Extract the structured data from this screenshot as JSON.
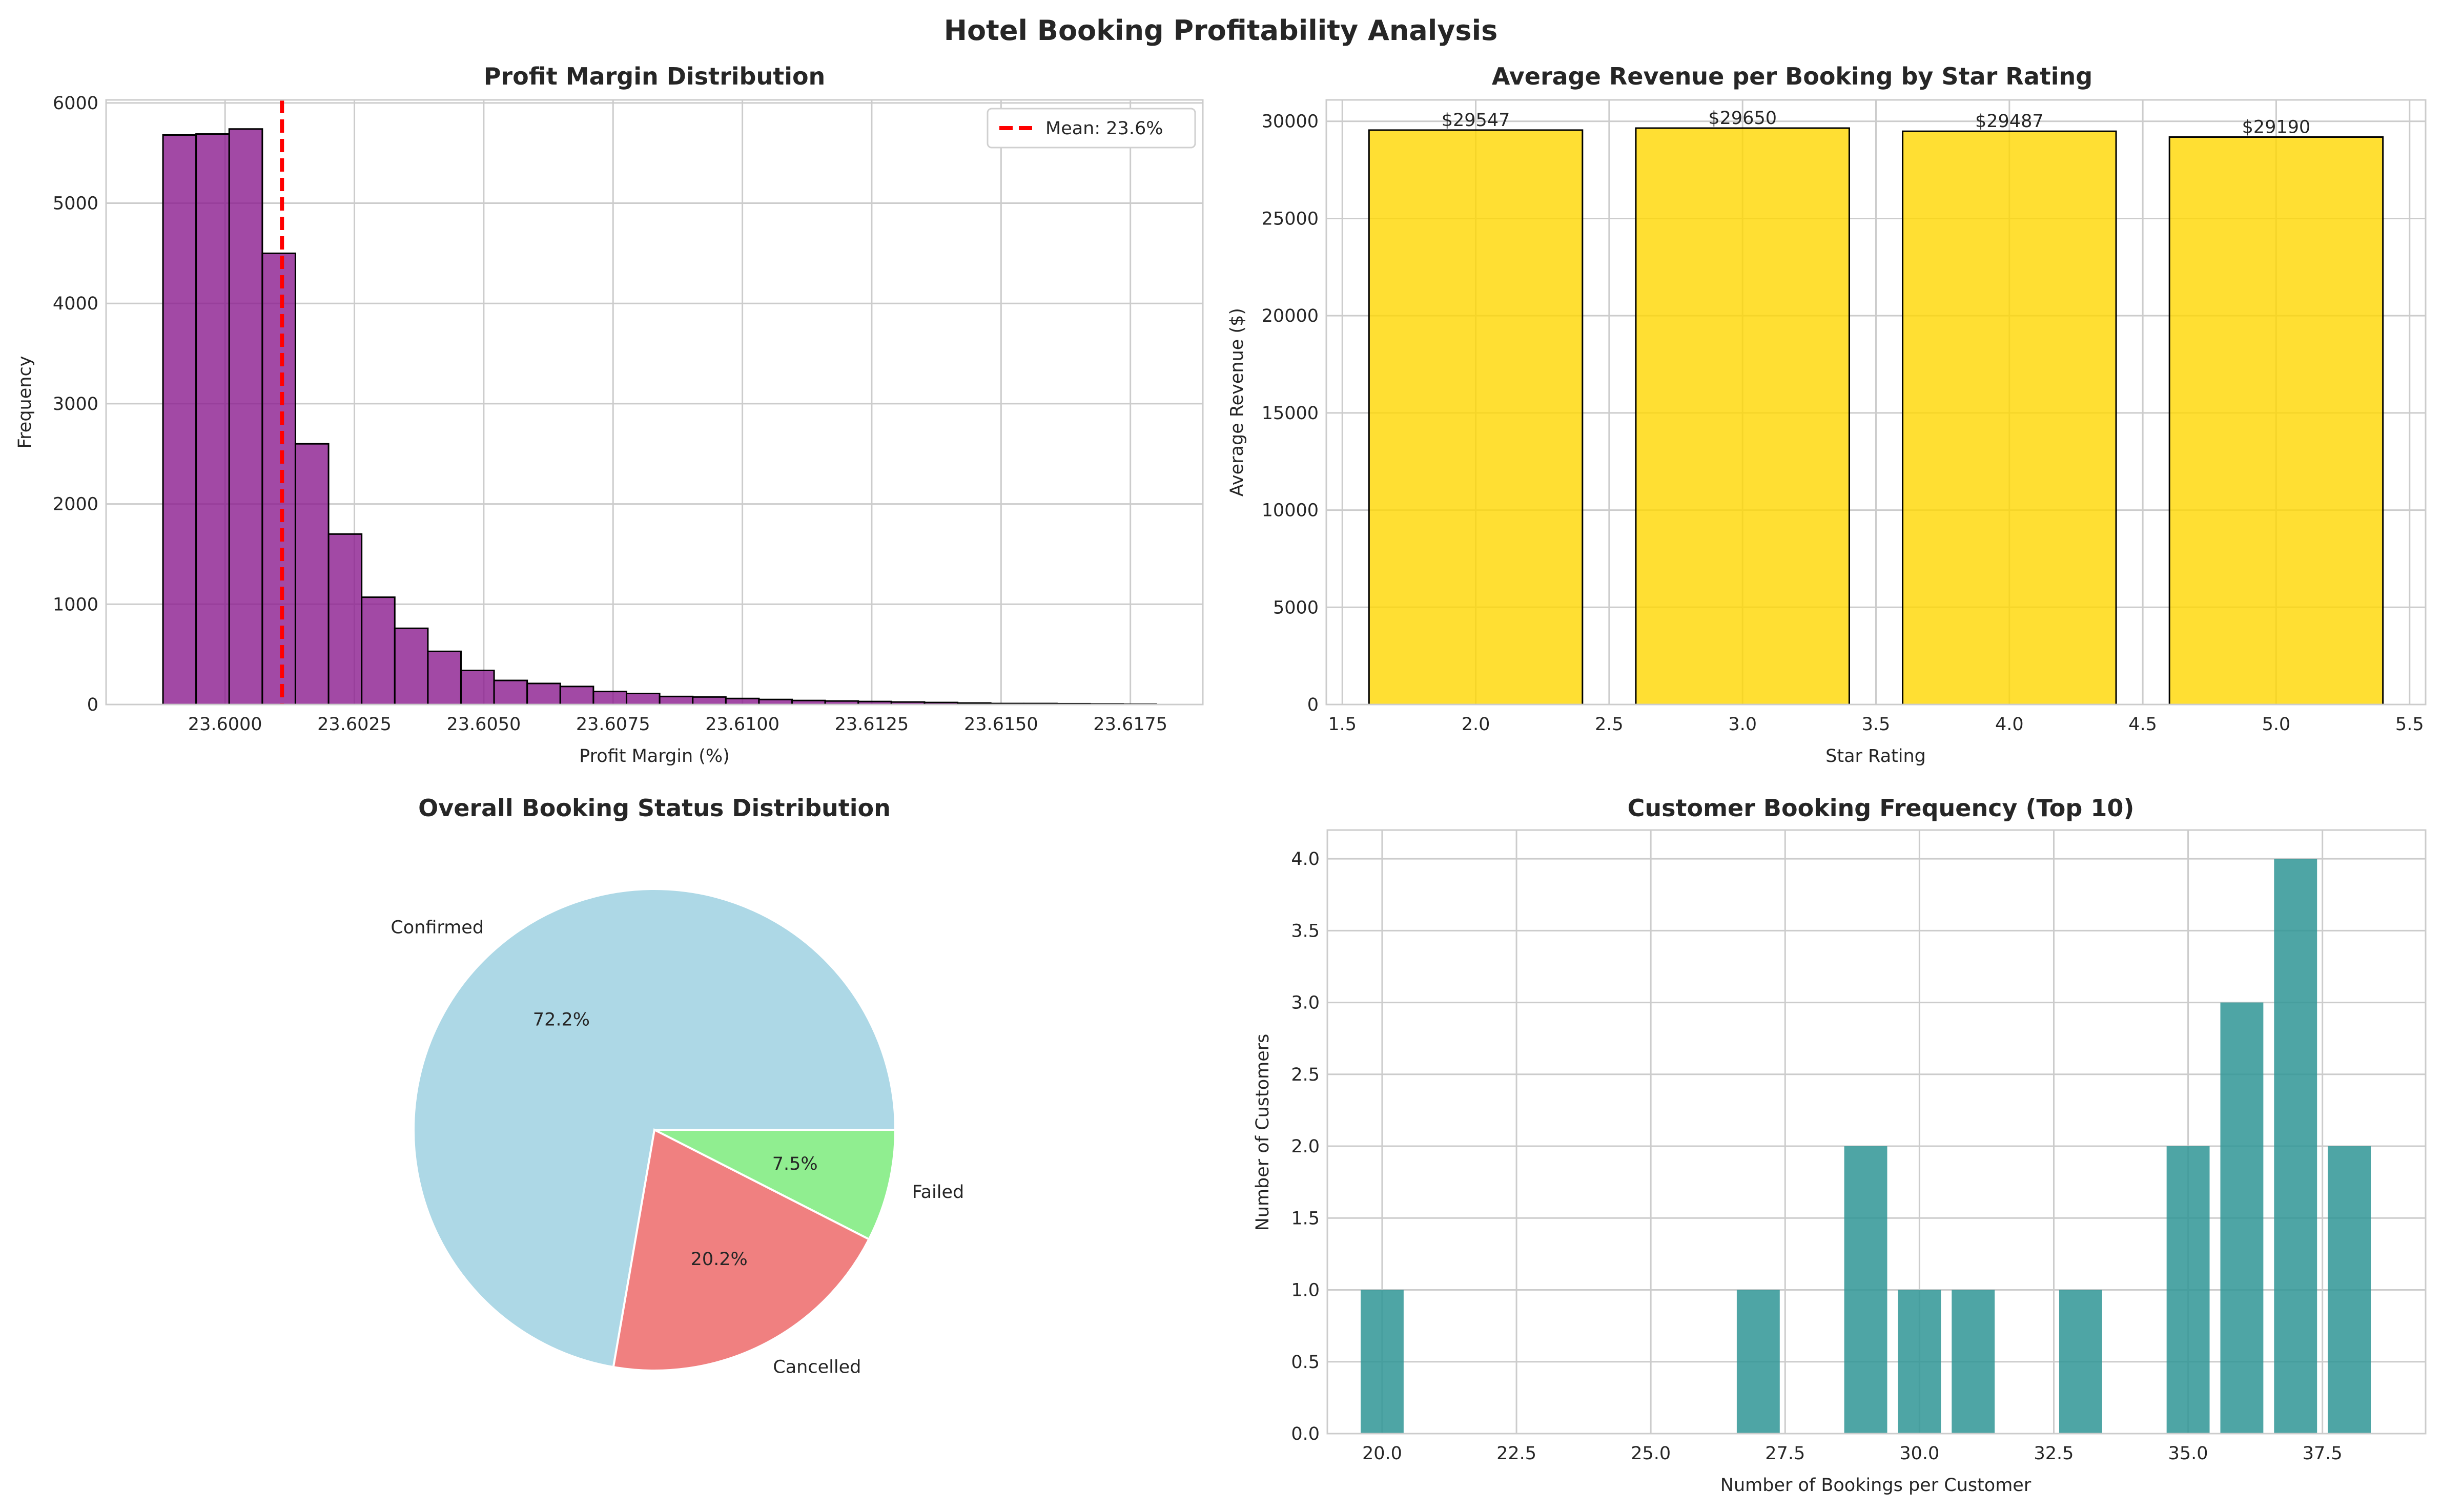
{
  "figure_title": "Hotel Booking Profitability Analysis",
  "chart_data": [
    {
      "type": "bar",
      "subtype": "histogram",
      "title": "Profit Margin Distribution",
      "xlabel": "Profit Margin (%)",
      "ylabel": "Frequency",
      "bin_start": 23.5988,
      "bin_width": 0.00064,
      "values": [
        5680,
        5690,
        5740,
        4500,
        2600,
        1700,
        1070,
        760,
        530,
        340,
        240,
        210,
        180,
        130,
        110,
        80,
        75,
        60,
        50,
        40,
        35,
        30,
        25,
        20,
        15,
        10,
        10,
        8,
        6,
        4
      ],
      "xlim": [
        23.5977,
        23.6189
      ],
      "ylim": [
        0,
        6030
      ],
      "xticks": [
        "23.6000",
        "23.6025",
        "23.6050",
        "23.6075",
        "23.6100",
        "23.6125",
        "23.6150",
        "23.6175"
      ],
      "xtick_values": [
        23.6,
        23.6025,
        23.605,
        23.6075,
        23.61,
        23.6125,
        23.615,
        23.6175
      ],
      "yticks": [
        0,
        1000,
        2000,
        3000,
        4000,
        5000,
        6000
      ],
      "mean_line": {
        "value": 23.6011,
        "label": "Mean: 23.6%",
        "color": "#ff0000"
      },
      "bar_color": "#8b1c8e",
      "legend_position": "top-right",
      "grid": true
    },
    {
      "type": "bar",
      "title": "Average Revenue per Booking by Star Rating",
      "xlabel": "Star Rating",
      "ylabel": "Average Revenue ($)",
      "x": [
        2,
        3,
        4,
        5
      ],
      "values": [
        29547,
        29650,
        29487,
        29190
      ],
      "data_labels": [
        "$29547",
        "$29650",
        "$29487",
        "$29190"
      ],
      "bar_width": 0.8,
      "xlim": [
        1.44,
        5.56
      ],
      "ylim": [
        0,
        31100
      ],
      "xticks": [
        "1.5",
        "2.0",
        "2.5",
        "3.0",
        "3.5",
        "4.0",
        "4.5",
        "5.0",
        "5.5"
      ],
      "xtick_values": [
        1.5,
        2,
        2.5,
        3,
        3.5,
        4,
        4.5,
        5,
        5.5
      ],
      "yticks": [
        0,
        5000,
        10000,
        15000,
        20000,
        25000,
        30000
      ],
      "bar_color": "#ffd700",
      "grid": true
    },
    {
      "type": "pie",
      "title": "Overall Booking Status Distribution",
      "labels": [
        "Confirmed",
        "Cancelled",
        "Failed"
      ],
      "values": [
        72.2,
        20.2,
        7.5
      ],
      "pct_labels": [
        "72.2%",
        "20.2%",
        "7.5%"
      ],
      "colors": [
        "#add8e6",
        "#f08080",
        "#90ee90"
      ]
    },
    {
      "type": "bar",
      "subtype": "histogram",
      "title": "Customer Booking Frequency (Top 10)",
      "xlabel": "Number of Bookings per Customer",
      "ylabel": "Number of Customers",
      "x": [
        20,
        27,
        29,
        30,
        31,
        33,
        35,
        36,
        37,
        38
      ],
      "values": [
        1,
        1,
        2,
        1,
        1,
        1,
        2,
        3,
        4,
        2
      ],
      "bar_width": 0.8,
      "xlim": [
        18.98,
        39.42
      ],
      "ylim": [
        0,
        4.2
      ],
      "xticks": [
        "20.0",
        "22.5",
        "25.0",
        "27.5",
        "30.0",
        "32.5",
        "35.0",
        "37.5"
      ],
      "xtick_values": [
        20,
        22.5,
        25,
        27.5,
        30,
        32.5,
        35,
        37.5
      ],
      "yticks": [
        "0.0",
        "0.5",
        "1.0",
        "1.5",
        "2.0",
        "2.5",
        "3.0",
        "3.5",
        "4.0"
      ],
      "ytick_values": [
        0,
        0.5,
        1,
        1.5,
        2,
        2.5,
        3,
        3.5,
        4
      ],
      "bar_color": "#2f9595",
      "grid": true
    }
  ]
}
